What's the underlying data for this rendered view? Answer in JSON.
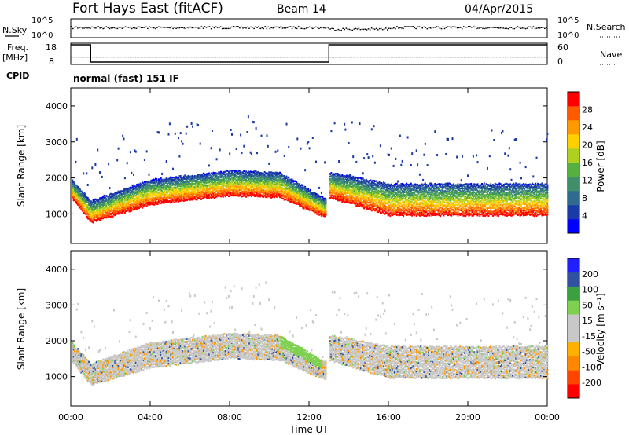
{
  "header": {
    "station": "Fort Hays East (fitACF)",
    "beam": "Beam 14",
    "date": "04/Apr/2015"
  },
  "top_panels": {
    "nsky_label": "N.Sky",
    "nsky_ticks": [
      "10^5",
      "10^0"
    ],
    "nsearch_label": "N.Search",
    "nsearch_ticks": [
      "10^5",
      "10^0"
    ],
    "freq_label": "Freq.",
    "freq_unit": "[MHz]",
    "freq_ticks": [
      18,
      8
    ],
    "nave_label": "Nave",
    "nave_ticks": [
      60,
      0
    ],
    "cpid_label": "CPID",
    "cpid_text": "normal (fast) 151 IF",
    "freq_segments": [
      {
        "start": 0.0,
        "end": 1.0,
        "value": 18
      },
      {
        "start": 1.0,
        "end": 13.0,
        "value": 8
      },
      {
        "start": 13.0,
        "end": 24.0,
        "value": 18
      }
    ],
    "nave_level": 10
  },
  "colors": {
    "power_colorbar": [
      "#0000ff",
      "#1a3aa8",
      "#2f6b8f",
      "#3f8f6a",
      "#56b040",
      "#b0d020",
      "#ffd000",
      "#ff9900",
      "#ff5a00",
      "#ff0000"
    ],
    "velocity_colorbar": [
      "#ff0000",
      "#ff4400",
      "#ff8800",
      "#ffb000",
      "#c8c8c8",
      "#c8c8c8",
      "#7fd050",
      "#3aa040",
      "#3050a0",
      "#2020ff"
    ]
  },
  "x_axis": {
    "label": "Time UT",
    "ticks": [
      "00:00",
      "04:00",
      "08:00",
      "12:00",
      "16:00",
      "20:00",
      "00:00"
    ]
  },
  "chart_data": [
    {
      "type": "heatmap",
      "name": "power",
      "ylabel": "Slant Range [km]",
      "ylim": [
        180,
        4500
      ],
      "xlim": [
        0,
        24
      ],
      "yticks": [
        1000,
        2000,
        3000,
        4000
      ],
      "colorbar_label": "Power [dB]",
      "colorbar_ticks": [
        4,
        8,
        12,
        16,
        20,
        24,
        28
      ],
      "scatter_band": [
        {
          "t": 0.0,
          "center": 1750,
          "width": 500
        },
        {
          "t": 1.0,
          "center": 1100,
          "width": 600
        },
        {
          "t": 4.0,
          "center": 1650,
          "width": 700
        },
        {
          "t": 8.0,
          "center": 1900,
          "width": 700
        },
        {
          "t": 10.5,
          "center": 1850,
          "width": 700
        },
        {
          "t": 12.8,
          "center": 1200,
          "width": 500
        },
        {
          "t": 13.0,
          "center": 1850,
          "width": 700
        },
        {
          "t": 16.0,
          "center": 1450,
          "width": 900
        },
        {
          "t": 20.0,
          "center": 1450,
          "width": 900
        },
        {
          "t": 24.0,
          "center": 1450,
          "width": 900
        }
      ]
    },
    {
      "type": "heatmap",
      "name": "velocity",
      "ylabel": "Slant Range [km]",
      "ylim": [
        180,
        4500
      ],
      "xlim": [
        0,
        24
      ],
      "yticks": [
        1000,
        2000,
        3000,
        4000
      ],
      "colorbar_label": "Velocity [m s⁻¹]",
      "colorbar_ticks": [
        200,
        100,
        50,
        15,
        -15,
        -50,
        -100,
        -200
      ],
      "scatter_band": [
        {
          "t": 0.0,
          "center": 1750,
          "width": 500
        },
        {
          "t": 1.0,
          "center": 1100,
          "width": 600
        },
        {
          "t": 4.0,
          "center": 1650,
          "width": 700
        },
        {
          "t": 8.0,
          "center": 1900,
          "width": 700
        },
        {
          "t": 10.5,
          "center": 1850,
          "width": 700
        },
        {
          "t": 12.8,
          "center": 1200,
          "width": 500
        },
        {
          "t": 13.0,
          "center": 1850,
          "width": 700
        },
        {
          "t": 16.0,
          "center": 1450,
          "width": 900
        },
        {
          "t": 20.0,
          "center": 1450,
          "width": 900
        },
        {
          "t": 24.0,
          "center": 1450,
          "width": 900
        }
      ]
    }
  ]
}
